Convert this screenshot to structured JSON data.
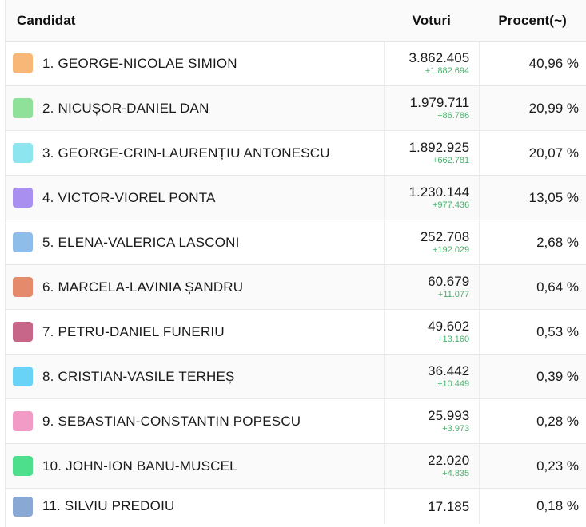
{
  "header": {
    "candidate": "Candidat",
    "votes": "Voturi",
    "percent": "Procent(~)"
  },
  "rows": [
    {
      "name": "1. GEORGE-NICOLAE SIMION",
      "votes": "3.862.405",
      "delta": "+1.882.694",
      "percent": "40,96 %",
      "color": "#f9b777"
    },
    {
      "name": "2. NICUȘOR-DANIEL DAN",
      "votes": "1.979.711",
      "delta": "+86.786",
      "percent": "20,99 %",
      "color": "#8fe098"
    },
    {
      "name": "3. GEORGE-CRIN-LAURENȚIU ANTONESCU",
      "votes": "1.892.925",
      "delta": "+662.781",
      "percent": "20,07 %",
      "color": "#8de6ef"
    },
    {
      "name": "4. VICTOR-VIOREL PONTA",
      "votes": "1.230.144",
      "delta": "+977.436",
      "percent": "13,05 %",
      "color": "#a88ff0"
    },
    {
      "name": "5. ELENA-VALERICA LASCONI",
      "votes": "252.708",
      "delta": "+192.029",
      "percent": "2,68 %",
      "color": "#8fbde9"
    },
    {
      "name": "6. MARCELA-LAVINIA ȘANDRU",
      "votes": "60.679",
      "delta": "+11.077",
      "percent": "0,64 %",
      "color": "#e68a6c"
    },
    {
      "name": "7. PETRU-DANIEL FUNERIU",
      "votes": "49.602",
      "delta": "+13.160",
      "percent": "0,53 %",
      "color": "#c8668a"
    },
    {
      "name": "8. CRISTIAN-VASILE TERHEȘ",
      "votes": "36.442",
      "delta": "+10.449",
      "percent": "0,39 %",
      "color": "#69d3f7"
    },
    {
      "name": "9. SEBASTIAN-CONSTANTIN POPESCU",
      "votes": "25.993",
      "delta": "+3.973",
      "percent": "0,28 %",
      "color": "#f29bc6"
    },
    {
      "name": "10. JOHN-ION BANU-MUSCEL",
      "votes": "22.020",
      "delta": "+4.835",
      "percent": "0,23 %",
      "color": "#4ddf8c"
    },
    {
      "name": "11. SILVIU PREDOIU",
      "votes": "17.185",
      "delta": "",
      "percent": "0,18 %",
      "color": "#89a8d4"
    }
  ]
}
